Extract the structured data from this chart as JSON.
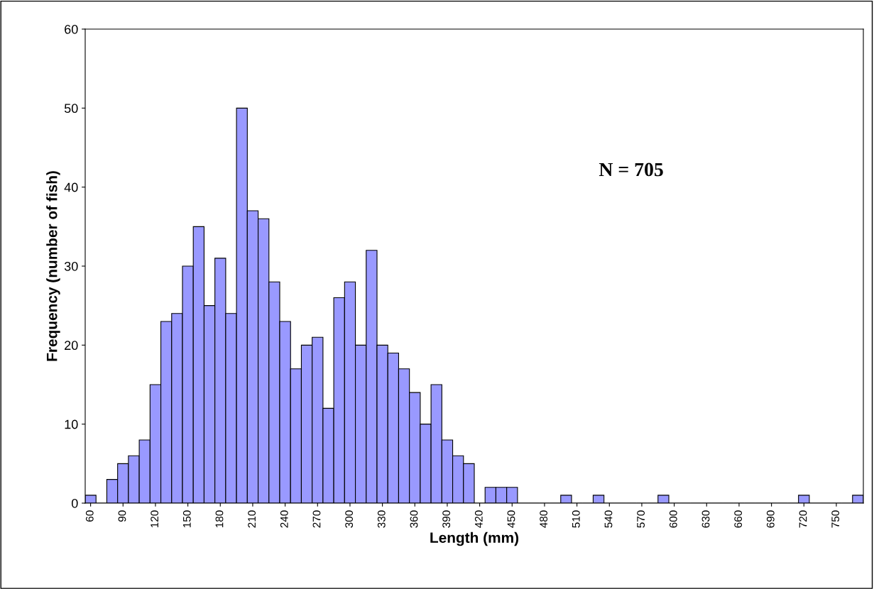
{
  "chart_data": {
    "type": "bar",
    "xlabel": "Length (mm)",
    "ylabel": "Frequency (number of fish)",
    "categories": [
      "60",
      null,
      null,
      "90",
      null,
      null,
      "120",
      null,
      null,
      "150",
      null,
      null,
      "180",
      null,
      null,
      "210",
      null,
      null,
      "240",
      null,
      null,
      "270",
      null,
      null,
      "300",
      null,
      null,
      "330",
      null,
      null,
      "360",
      null,
      null,
      "390",
      null,
      null,
      "420",
      null,
      null,
      "450",
      null,
      null,
      "480",
      null,
      null,
      "510",
      null,
      null,
      "540",
      null,
      null,
      "570",
      null,
      null,
      "600",
      null,
      null,
      "630",
      null,
      null,
      "660",
      null,
      null,
      "690",
      null,
      null,
      "720",
      null,
      null,
      "750",
      null,
      null
    ],
    "values": [
      1,
      0,
      3,
      5,
      6,
      8,
      15,
      23,
      24,
      30,
      35,
      25,
      31,
      24,
      50,
      37,
      36,
      28,
      23,
      17,
      20,
      21,
      12,
      26,
      28,
      20,
      32,
      20,
      19,
      17,
      14,
      10,
      15,
      8,
      6,
      5,
      0,
      2,
      2,
      2,
      0,
      0,
      0,
      0,
      1,
      0,
      0,
      1,
      0,
      0,
      0,
      0,
      0,
      1,
      0,
      0,
      0,
      0,
      0,
      0,
      0,
      0,
      0,
      0,
      0,
      0,
      1,
      0,
      0,
      0,
      0,
      1
    ],
    "color": "#9999ff",
    "ylim": [
      0,
      60
    ],
    "yticks": [
      0,
      10,
      20,
      30,
      40,
      50,
      60
    ],
    "grid": false,
    "legend": false,
    "annotations": [
      "N = 705"
    ]
  }
}
